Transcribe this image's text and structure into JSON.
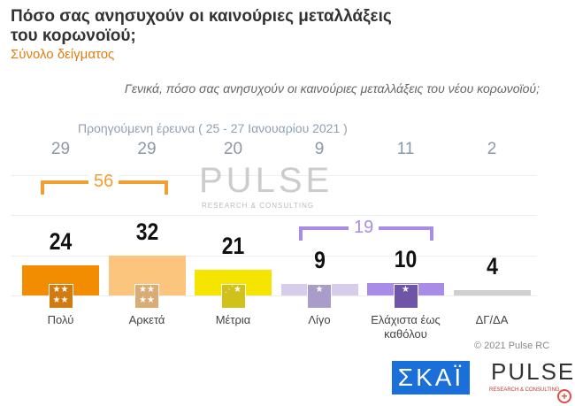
{
  "header": {
    "title": "Πόσο σας ανησυχούν οι καινούριες μεταλλάξεις του κορωνοϊού;",
    "subtitle": "Σύνολο δείγματος"
  },
  "chart_data": {
    "type": "bar",
    "question": "Γενικά, πόσο σας ανησυχούν οι καινούριες μεταλλάξεις του νέου κορωνοϊού;",
    "categories": [
      "Πολύ",
      "Αρκετά",
      "Μέτρια",
      "Λίγο",
      "Ελάχιστα έως καθόλου",
      "ΔΓ/ΔΑ"
    ],
    "values": [
      24,
      32,
      21,
      9,
      10,
      4
    ],
    "colors": [
      "#f28c00",
      "#fbc57e",
      "#f5e400",
      "#d6cdea",
      "#a98ce8",
      "#cfcfcf"
    ],
    "badge_colors": [
      "#d07a10",
      "#d9ac73",
      "#cfc21a",
      "#a99cc8",
      "#6e55a8",
      ""
    ],
    "previous_label": "Προηγούμενη έρευνα  ( 25 - 27 Ιανουαρίου  2021 )",
    "previous_values": [
      29,
      29,
      20,
      9,
      11,
      2
    ],
    "groups": [
      {
        "label": "56",
        "color": "#f0a030"
      },
      {
        "label": "19",
        "color": "#a98ce8"
      }
    ]
  },
  "watermark": {
    "text": "PULSE",
    "sub": "RESEARCH & CONSULTING"
  },
  "footer": {
    "copyright": "© 2021 Pulse RC",
    "skai": "ΣΚΑΪ",
    "pulse": "PULSE",
    "pulse_sub": "RESEARCH & CONSULTING"
  }
}
